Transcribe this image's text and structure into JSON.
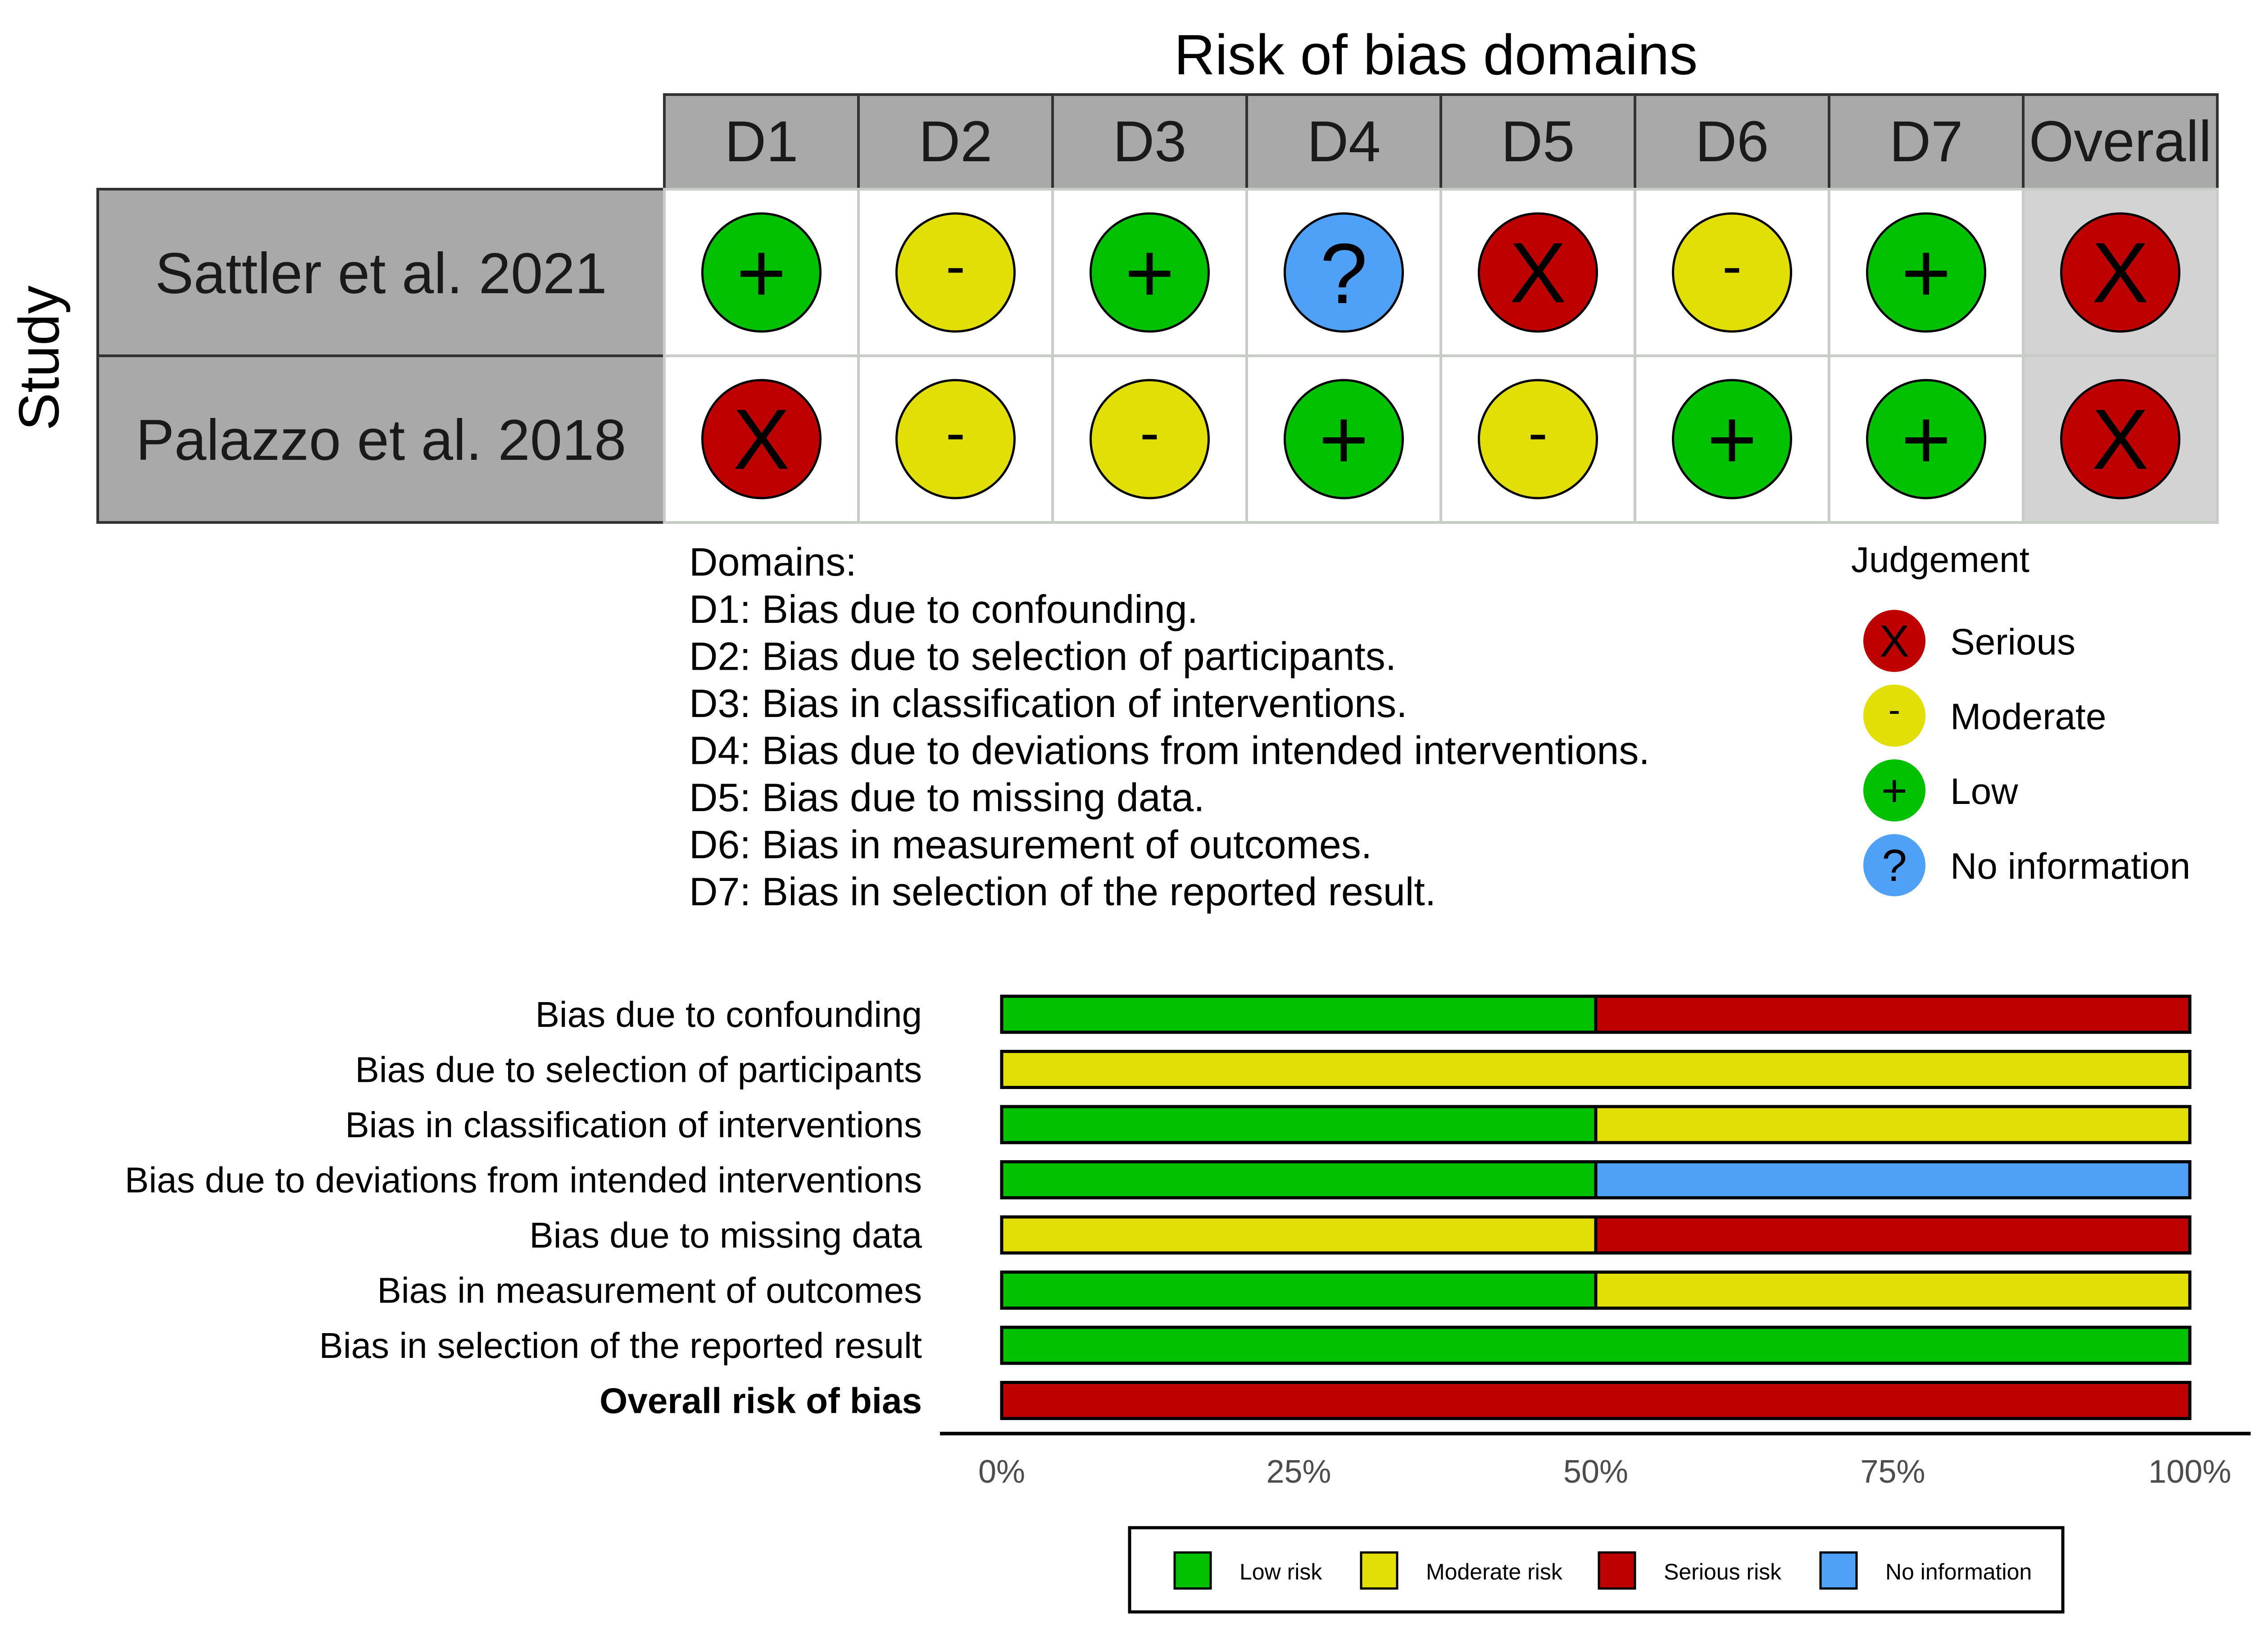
{
  "colors": {
    "serious": "#BF0000",
    "moderate": "#E2DF07",
    "low": "#02C100",
    "no_information": "#4EA1F7",
    "header_fill": "#A9A9A9",
    "overall_fill": "#D3D3D3"
  },
  "chart_data": [
    {
      "type": "table",
      "title": "Risk of bias domains",
      "row_axis_label": "Study",
      "columns": [
        "D1",
        "D2",
        "D3",
        "D4",
        "D5",
        "D6",
        "D7",
        "Overall"
      ],
      "rows": [
        {
          "study": "Sattler et al. 2021",
          "judgements": [
            "low",
            "moderate",
            "low",
            "no_information",
            "serious",
            "moderate",
            "low",
            "serious"
          ]
        },
        {
          "study": "Palazzo et al. 2018",
          "judgements": [
            "serious",
            "moderate",
            "moderate",
            "low",
            "moderate",
            "low",
            "low",
            "serious"
          ]
        }
      ],
      "symbols": {
        "serious": "X",
        "moderate": "-",
        "low": "+",
        "no_information": "?"
      },
      "domains_title": "Domains:",
      "domains": [
        "D1: Bias due to confounding.",
        "D2: Bias due to selection of participants.",
        "D3: Bias in classification of interventions.",
        "D4: Bias due to deviations from intended interventions.",
        "D5: Bias due to missing data.",
        "D6: Bias in measurement of outcomes.",
        "D7: Bias in selection of the reported result."
      ],
      "judgement_legend": {
        "title": "Judgement",
        "items": [
          {
            "key": "serious",
            "label": "Serious"
          },
          {
            "key": "moderate",
            "label": "Moderate"
          },
          {
            "key": "low",
            "label": "Low"
          },
          {
            "key": "no_information",
            "label": "No information"
          }
        ]
      }
    },
    {
      "type": "bar",
      "orientation": "horizontal",
      "stacked": true,
      "categories": [
        "Bias due to confounding",
        "Bias due to selection of participants",
        "Bias in classification of interventions",
        "Bias due to deviations from intended interventions",
        "Bias due to missing data",
        "Bias in measurement of outcomes",
        "Bias in selection of the reported result",
        "Overall risk of bias"
      ],
      "bold_category": "Overall risk of bias",
      "series": [
        {
          "name": "Low risk",
          "key": "low",
          "values": [
            50,
            0,
            50,
            50,
            0,
            50,
            100,
            0
          ]
        },
        {
          "name": "Moderate risk",
          "key": "moderate",
          "values": [
            0,
            100,
            50,
            0,
            50,
            50,
            0,
            0
          ]
        },
        {
          "name": "Serious risk",
          "key": "serious",
          "values": [
            50,
            0,
            0,
            0,
            50,
            0,
            0,
            100
          ]
        },
        {
          "name": "No information",
          "key": "no_information",
          "values": [
            0,
            0,
            0,
            50,
            0,
            0,
            0,
            0
          ]
        }
      ],
      "xlim": [
        0,
        100
      ],
      "x_ticks": [
        0,
        25,
        50,
        75,
        100
      ],
      "x_tick_labels": [
        "0%",
        "25%",
        "50%",
        "75%",
        "100%"
      ],
      "legend_position": "bottom"
    }
  ]
}
